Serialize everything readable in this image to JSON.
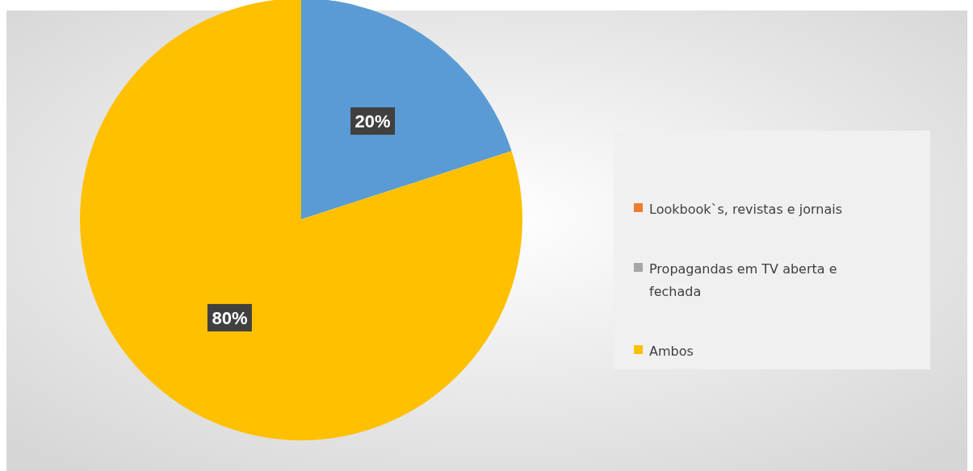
{
  "chart_data": {
    "type": "pie",
    "categories": [
      null,
      "Lookbook`s, revistas e jornais",
      "Propagandas em TV aberta e fechada",
      "Ambos"
    ],
    "values": [
      20,
      0,
      0,
      80
    ],
    "colors": [
      "#5b9bd5",
      "#ed7d31",
      "#a5a5a5",
      "#ffc000"
    ],
    "value_labels": [
      "20%",
      null,
      null,
      "80%"
    ],
    "legend": "right"
  }
}
